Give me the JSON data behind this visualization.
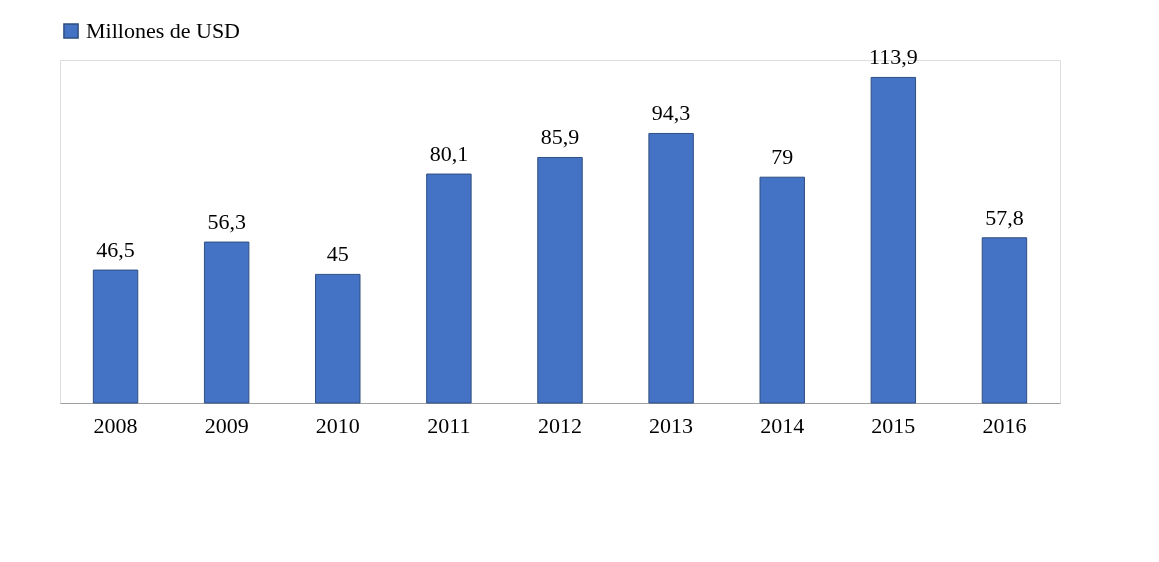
{
  "chart_data": {
    "type": "bar",
    "categories": [
      "2008",
      "2009",
      "2010",
      "2011",
      "2012",
      "2013",
      "2014",
      "2015",
      "2016"
    ],
    "series": [
      {
        "name": "Millones de USD",
        "color": "#4472c4",
        "values": [
          46.5,
          56.3,
          45,
          80.1,
          85.9,
          94.3,
          79,
          113.9,
          57.8
        ],
        "value_labels": [
          "46,5",
          "56,3",
          "45",
          "80,1",
          "85,9",
          "94,3",
          "79",
          "113,9",
          "57,8"
        ]
      }
    ],
    "ylim": [
      0,
      120
    ],
    "tick_labels": "x",
    "grid": false,
    "legend": "top"
  }
}
